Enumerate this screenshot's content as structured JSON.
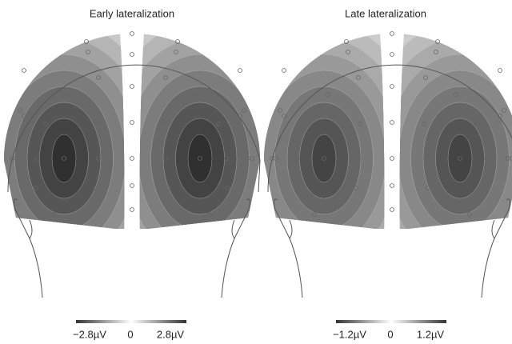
{
  "panels": [
    {
      "title": "Early lateralization",
      "colorbar": {
        "labels": [
          "−2.8µV",
          "0",
          "2.8µV"
        ]
      }
    },
    {
      "title": "Late lateralization",
      "colorbar": {
        "labels": [
          "−1.2µV",
          "0",
          "1.2µV"
        ]
      }
    }
  ]
}
